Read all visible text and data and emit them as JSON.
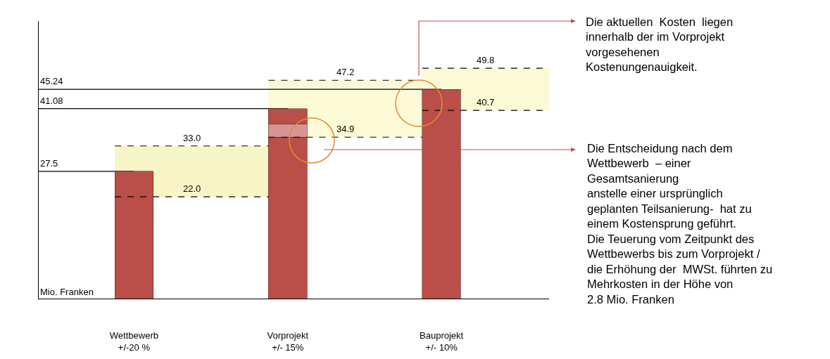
{
  "chart_data": {
    "type": "bar",
    "stacked": true,
    "categories": [
      "Wettbewerb\n+/-20 %",
      "Vorprojekt\n+/- 15%",
      "Bauprojekt\n+/- 10%"
    ],
    "series": [
      {
        "color": "#b94f48",
        "values": [
          27.5,
          34.9,
          45.24
        ]
      },
      {
        "color": "#d79592",
        "values": [
          null,
          2.8,
          null
        ]
      },
      {
        "color": "#b94f48",
        "values": [
          null,
          3.38,
          null
        ]
      }
    ],
    "ylabel": "Mio. Franken",
    "ylim": [
      0,
      60
    ],
    "tick_labels": "x",
    "bands": [
      {
        "axis": "y",
        "from": 22.0,
        "to": 33.0,
        "color": "#f7f4c6"
      },
      {
        "axis": "y",
        "from": 34.9,
        "to": 47.2,
        "color": "#fbf9d6"
      },
      {
        "axis": "y",
        "from": 40.7,
        "to": 49.8,
        "color": "#fbf9d6"
      }
    ],
    "ref_lines": [
      {
        "axis": "y",
        "value": 45.24,
        "label": "45.24",
        "line_style": "solid",
        "color": "#000000"
      },
      {
        "axis": "y",
        "value": 41.08,
        "label": "41.08",
        "line_style": "solid",
        "color": "#000000"
      },
      {
        "axis": "y",
        "value": 27.5,
        "label": "27.5",
        "line_style": "solid",
        "color": "#000000"
      },
      {
        "axis": "y",
        "value": 33.0,
        "label": "33.0",
        "line_style": "dashed",
        "color": "#000000"
      },
      {
        "axis": "y",
        "value": 22.0,
        "label": "22.0",
        "line_style": "dashed",
        "color": "#000000"
      },
      {
        "axis": "y",
        "value": 47.2,
        "label": "47.2",
        "line_style": "dashed",
        "color": "#000000"
      },
      {
        "axis": "y",
        "value": 34.9,
        "label": "34.9",
        "line_style": "dashed",
        "color": "#000000"
      },
      {
        "axis": "y",
        "value": 49.8,
        "label": "49.8",
        "line_style": "dashed",
        "color": "#000000"
      },
      {
        "axis": "y",
        "value": 40.7,
        "label": "40.7",
        "line_style": "dashed",
        "color": "#000000"
      }
    ],
    "annotations": [
      "Die aktuellen  Kosten  liegen\ninnerhalb der im Vorprojekt\nvorgesehenen\nKostenungenauigkeit.",
      "Die Entscheidung nach dem\nWettbewerb  – einer\nGesamtsanierung\nanstelle einer ursprünglich\ngeplanten Teilsanierung-  hat zu\neinem Kostensprung geführt.\nDie Teuerung vom Zeitpunkt des\nWettbewerbs bis zum Vorprojekt /\ndie Erhöhung der  MWSt. führten zu\nMehrkosten in der Höhe von\n2.8 Mio. Franken"
    ]
  }
}
